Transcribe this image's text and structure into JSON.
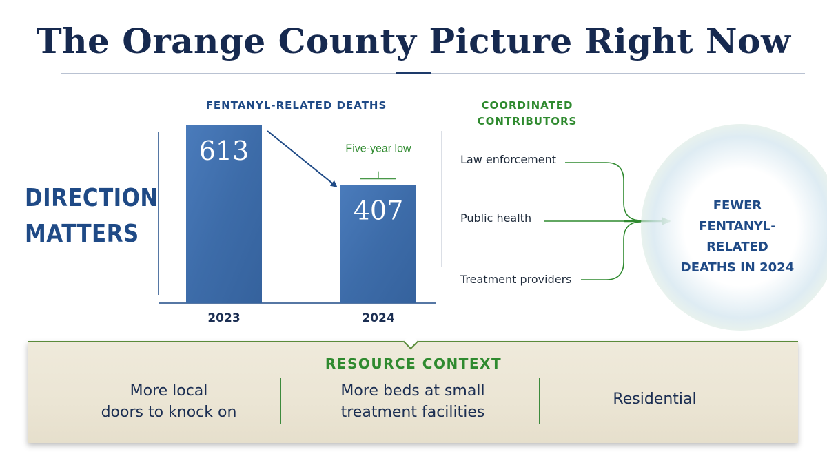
{
  "title": "The Orange County Picture Right Now",
  "headline": {
    "line1": "DIRECTION",
    "line2": "MATTERS"
  },
  "chart_data": {
    "type": "bar",
    "title": "FENTANYL-RELATED DEATHS",
    "categories": [
      "2023",
      "2024"
    ],
    "values": [
      613,
      407
    ],
    "data_labels": [
      "613",
      "407"
    ],
    "annotation": "Five-year low",
    "annotation_target": "2024",
    "trend_arrow": {
      "from": "2023",
      "to": "2024"
    },
    "ylim": [
      0,
      613
    ],
    "bar_color": "#3f6fae",
    "annotation_color": "#2f8a2f"
  },
  "contributors": {
    "title_line1": "COORDINATED",
    "title_line2": "CONTRIBUTORS",
    "items": [
      "Law enforcement",
      "Public health",
      "Treatment providers"
    ],
    "line_color": "#2f8a2f"
  },
  "outcome": {
    "line1": "FEWER",
    "line2": "FENTANYL-RELATED",
    "line3": "DEATHS IN 2024"
  },
  "resource_context": {
    "title": "RESOURCE CONTEXT",
    "items": [
      {
        "line1": "More local",
        "line2": "doors to knock on"
      },
      {
        "line1": "More beds at small",
        "line2": "treatment facilities"
      },
      {
        "line1": "Residential",
        "line2": ""
      }
    ]
  },
  "colors": {
    "navy": "#16294f",
    "blue": "#1f4a86",
    "green": "#2f8a2f"
  }
}
